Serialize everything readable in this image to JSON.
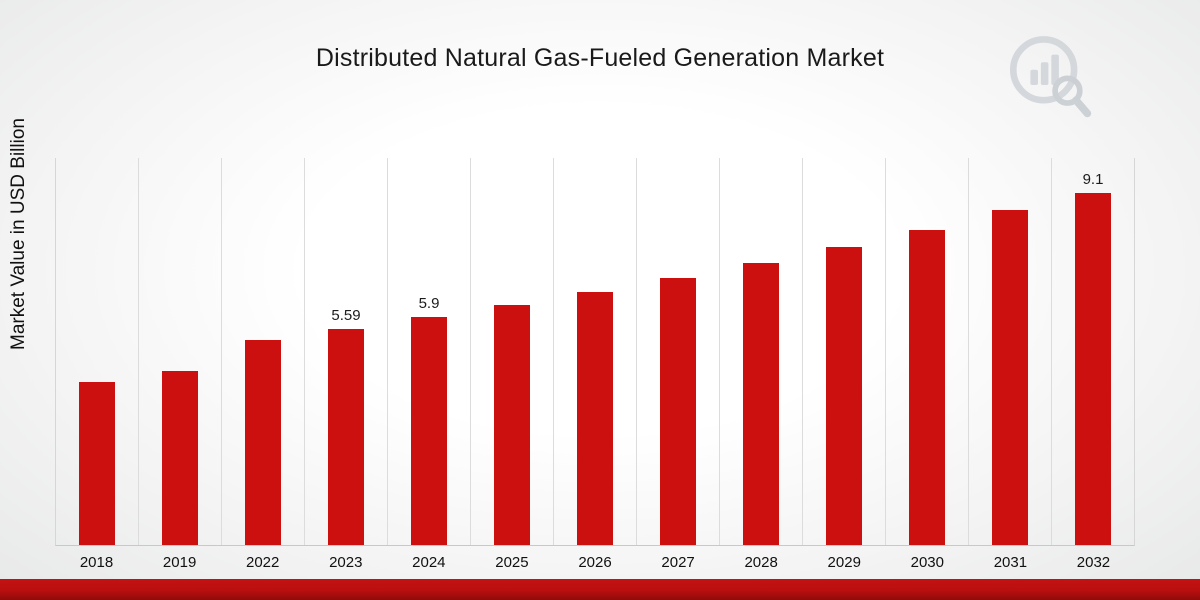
{
  "title": "Distributed Natural Gas-Fueled Generation Market",
  "ylabel": "Market Value in USD Billion",
  "colors": {
    "bar": "#cc1010",
    "accent_strip": "#b90f0f",
    "grid": "#dcdcdc",
    "logo": "#cfd4d8"
  },
  "logo_icon": "bar-chart-magnifier-logo",
  "chart_data": {
    "type": "bar",
    "title": "Distributed Natural Gas-Fueled Generation Market",
    "xlabel": "",
    "ylabel": "Market Value in USD Billion",
    "categories": [
      "2018",
      "2019",
      "2022",
      "2023",
      "2024",
      "2025",
      "2026",
      "2027",
      "2028",
      "2029",
      "2030",
      "2031",
      "2032"
    ],
    "values": [
      4.2,
      4.5,
      5.3,
      5.59,
      5.9,
      6.2,
      6.55,
      6.9,
      7.3,
      7.7,
      8.15,
      8.65,
      9.1
    ],
    "bar_labels": [
      "",
      "",
      "",
      "5.59",
      "5.9",
      "",
      "",
      "",
      "",
      "",
      "",
      "",
      "9.1"
    ],
    "ylim": [
      0,
      10
    ],
    "grid": "vertical-only",
    "legend": "none",
    "bar_color": "#cc1010"
  }
}
